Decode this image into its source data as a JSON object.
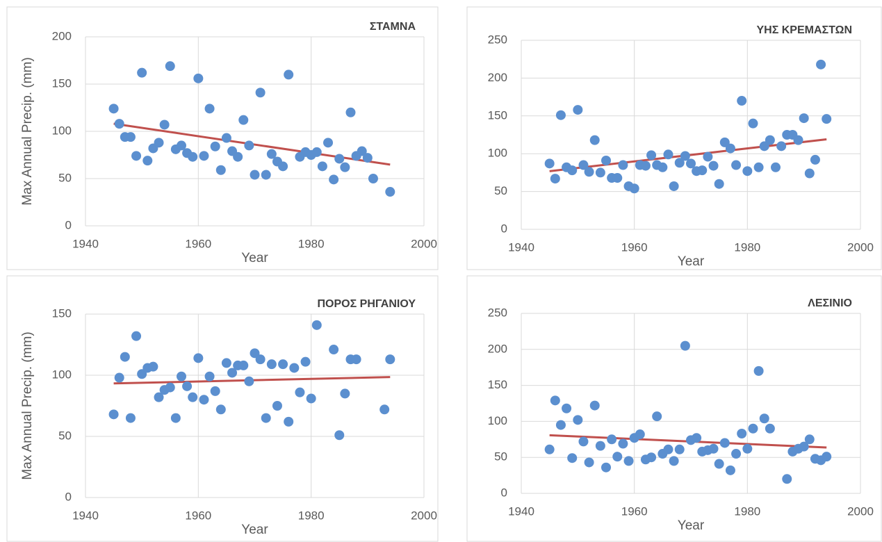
{
  "chart_data": [
    {
      "type": "scatter",
      "title": "ΣΤΑΜΝΑ",
      "x_label": "Year",
      "y_label": "Max Annual  Precip. (mm)",
      "x": [
        1945,
        1946,
        1947,
        1948,
        1949,
        1950,
        1951,
        1952,
        1953,
        1954,
        1955,
        1956,
        1957,
        1958,
        1959,
        1960,
        1961,
        1962,
        1963,
        1964,
        1965,
        1966,
        1967,
        1968,
        1969,
        1970,
        1971,
        1972,
        1973,
        1974,
        1975,
        1976,
        1978,
        1979,
        1980,
        1981,
        1982,
        1983,
        1984,
        1985,
        1986,
        1987,
        1988,
        1989,
        1990,
        1991,
        1994
      ],
      "values": [
        124,
        108,
        94,
        94,
        74,
        162,
        69,
        82,
        88,
        107,
        169,
        81,
        85,
        77,
        73,
        156,
        74,
        124,
        84,
        59,
        93,
        79,
        73,
        112,
        85,
        54,
        141,
        54,
        76,
        68,
        63,
        160,
        73,
        78,
        75,
        78,
        63,
        88,
        49,
        71,
        62,
        120,
        74,
        79,
        72,
        50,
        36
      ],
      "xlim": [
        1940,
        2000
      ],
      "xticks": [
        1940,
        1960,
        1980,
        2000
      ],
      "ylim": [
        0,
        200
      ],
      "yticks": [
        0,
        50,
        100,
        150,
        200
      ],
      "grid": true,
      "color": "#5b8fcf",
      "trendline_color": "#c0504d"
    },
    {
      "type": "scatter",
      "title": "ΥΗΣ ΚΡΕΜΑΣΤΩΝ",
      "x_label": "Year",
      "x": [
        1945,
        1946,
        1947,
        1948,
        1949,
        1950,
        1951,
        1952,
        1953,
        1954,
        1955,
        1956,
        1957,
        1958,
        1959,
        1960,
        1961,
        1962,
        1963,
        1964,
        1965,
        1966,
        1967,
        1968,
        1969,
        1970,
        1971,
        1972,
        1973,
        1974,
        1975,
        1976,
        1977,
        1978,
        1979,
        1980,
        1981,
        1982,
        1983,
        1984,
        1985,
        1986,
        1987,
        1988,
        1989,
        1990,
        1991,
        1992,
        1993,
        1994
      ],
      "values": [
        87,
        67,
        151,
        82,
        78,
        158,
        85,
        76,
        118,
        75,
        91,
        68,
        68,
        85,
        57,
        54,
        85,
        84,
        98,
        85,
        82,
        99,
        57,
        88,
        97,
        87,
        77,
        78,
        96,
        84,
        60,
        115,
        107,
        85,
        170,
        77,
        140,
        82,
        110,
        118,
        82,
        110,
        125,
        125,
        118,
        147,
        74,
        92,
        218,
        146
      ],
      "xlim": [
        1940,
        2000
      ],
      "xticks": [
        1940,
        1960,
        1980,
        2000
      ],
      "ylim": [
        0,
        250
      ],
      "yticks": [
        0,
        50,
        100,
        150,
        200,
        250
      ],
      "grid": true,
      "color": "#5b8fcf",
      "trendline_color": "#c0504d"
    },
    {
      "type": "scatter",
      "title": "ΠΟΡΟΣ ΡΗΓΑΝΙΟΥ",
      "x_label": "Year",
      "y_label": "Max Annual  Precip. (mm)",
      "x": [
        1945,
        1946,
        1947,
        1948,
        1949,
        1950,
        1951,
        1952,
        1953,
        1954,
        1955,
        1956,
        1957,
        1958,
        1959,
        1960,
        1961,
        1962,
        1963,
        1964,
        1965,
        1966,
        1967,
        1968,
        1969,
        1970,
        1971,
        1972,
        1973,
        1974,
        1975,
        1976,
        1977,
        1978,
        1979,
        1980,
        1981,
        1984,
        1985,
        1986,
        1987,
        1988,
        1993,
        1994
      ],
      "values": [
        68,
        98,
        115,
        65,
        132,
        101,
        106,
        107,
        82,
        88,
        90,
        65,
        99,
        91,
        82,
        114,
        80,
        99,
        87,
        72,
        110,
        102,
        108,
        108,
        95,
        118,
        113,
        65,
        109,
        75,
        109,
        62,
        106,
        86,
        111,
        81,
        141,
        121,
        51,
        85,
        113,
        113,
        72,
        113
      ],
      "xlim": [
        1940,
        2000
      ],
      "xticks": [
        1940,
        1960,
        1980,
        2000
      ],
      "ylim": [
        0,
        150
      ],
      "yticks": [
        0,
        50,
        100,
        150
      ],
      "grid": true,
      "color": "#5b8fcf",
      "trendline_color": "#c0504d"
    },
    {
      "type": "scatter",
      "title": "ΛΕΣΙΝΙΟ",
      "x_label": "Year",
      "x": [
        1945,
        1946,
        1947,
        1948,
        1949,
        1950,
        1951,
        1952,
        1953,
        1954,
        1955,
        1956,
        1957,
        1958,
        1959,
        1960,
        1961,
        1962,
        1963,
        1964,
        1965,
        1966,
        1967,
        1968,
        1969,
        1970,
        1971,
        1972,
        1973,
        1974,
        1975,
        1976,
        1977,
        1978,
        1979,
        1980,
        1981,
        1982,
        1983,
        1984,
        1987,
        1988,
        1989,
        1990,
        1991,
        1992,
        1993,
        1994
      ],
      "values": [
        61,
        129,
        95,
        118,
        49,
        102,
        72,
        43,
        122,
        66,
        36,
        75,
        51,
        69,
        45,
        77,
        82,
        47,
        50,
        107,
        55,
        61,
        45,
        61,
        205,
        74,
        77,
        58,
        60,
        62,
        41,
        70,
        32,
        55,
        83,
        62,
        90,
        170,
        104,
        90,
        20,
        58,
        62,
        65,
        75,
        48,
        46,
        51
      ],
      "xlim": [
        1940,
        2000
      ],
      "xticks": [
        1940,
        1960,
        1980,
        2000
      ],
      "ylim": [
        0,
        250
      ],
      "yticks": [
        0,
        50,
        100,
        150,
        200,
        250
      ],
      "grid": true,
      "color": "#5b8fcf",
      "trendline_color": "#c0504d"
    }
  ]
}
